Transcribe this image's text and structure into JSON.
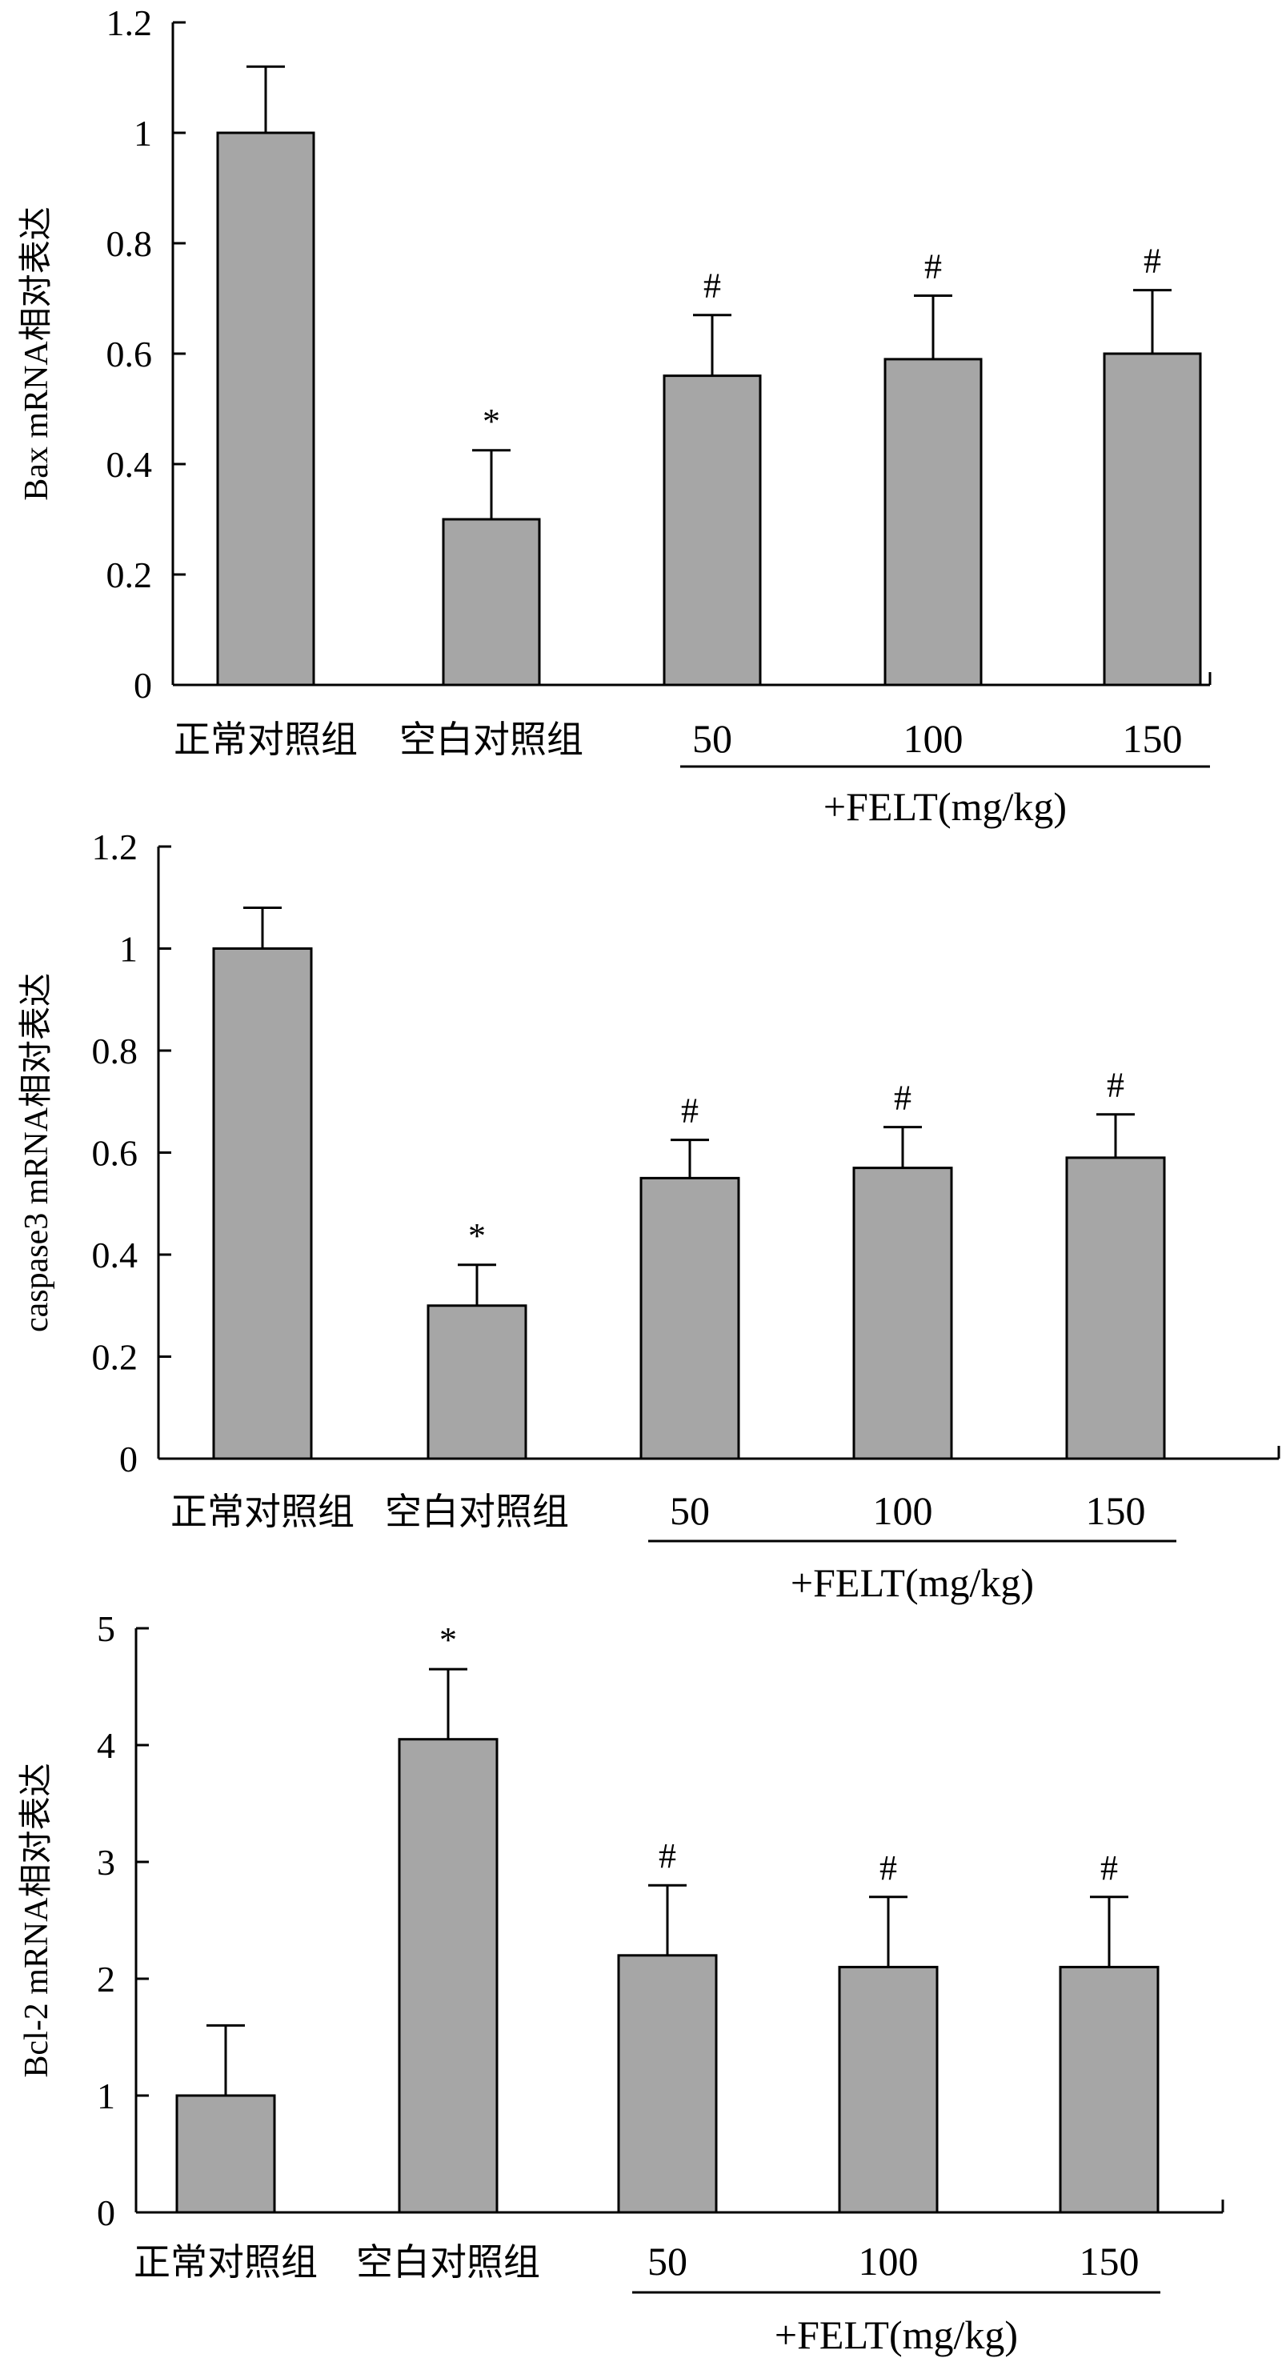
{
  "chart_data": [
    {
      "type": "bar",
      "categories": [
        "正常对照组",
        "空白对照组",
        "50",
        "100",
        "150"
      ],
      "values": [
        1.0,
        0.3,
        0.56,
        0.59,
        0.6
      ],
      "errors": [
        0.12,
        0.125,
        0.11,
        0.115,
        0.115
      ],
      "annotations": [
        "",
        "*",
        "#",
        "#",
        "#"
      ],
      "ylabel": "Bax mRNA相对表达",
      "ylim": [
        0,
        1.2
      ],
      "yticks": [
        0,
        0.2,
        0.4,
        0.6,
        0.8,
        1,
        1.2
      ],
      "ytick_labels": [
        "0",
        "0.2",
        "0.4",
        "0.6",
        "0.8",
        "1",
        "1.2"
      ],
      "group_label": "+FELT(mg/kg)"
    },
    {
      "type": "bar",
      "categories": [
        "正常对照组",
        "空白对照组",
        "50",
        "100",
        "150"
      ],
      "values": [
        1.0,
        0.3,
        0.55,
        0.57,
        0.59
      ],
      "errors": [
        0.08,
        0.08,
        0.075,
        0.08,
        0.085
      ],
      "annotations": [
        "",
        "*",
        "#",
        "#",
        "#"
      ],
      "ylabel": "caspase3 mRNA相对表达",
      "ylim": [
        0,
        1.2
      ],
      "yticks": [
        0,
        0.2,
        0.4,
        0.6,
        0.8,
        1,
        1.2
      ],
      "ytick_labels": [
        "0",
        "0.2",
        "0.4",
        "0.6",
        "0.8",
        "1",
        "1.2"
      ],
      "group_label": "+FELT(mg/kg)"
    },
    {
      "type": "bar",
      "categories": [
        "正常对照组",
        "空白对照组",
        "50",
        "100",
        "150"
      ],
      "values": [
        1.0,
        4.05,
        2.2,
        2.1,
        2.1
      ],
      "errors": [
        0.6,
        0.6,
        0.6,
        0.6,
        0.6
      ],
      "annotations": [
        "",
        "*",
        "#",
        "#",
        "#"
      ],
      "ylabel": "Bcl-2 mRNA相对表达",
      "ylim": [
        0,
        5
      ],
      "yticks": [
        0,
        1,
        2,
        3,
        4,
        5
      ],
      "ytick_labels": [
        "0",
        "1",
        "2",
        "3",
        "4",
        "5"
      ],
      "group_label": "+FELT(mg/kg)"
    }
  ],
  "colors": {
    "bar_fill": "#a6a6a6",
    "ink": "#000000",
    "background": "#ffffff"
  }
}
